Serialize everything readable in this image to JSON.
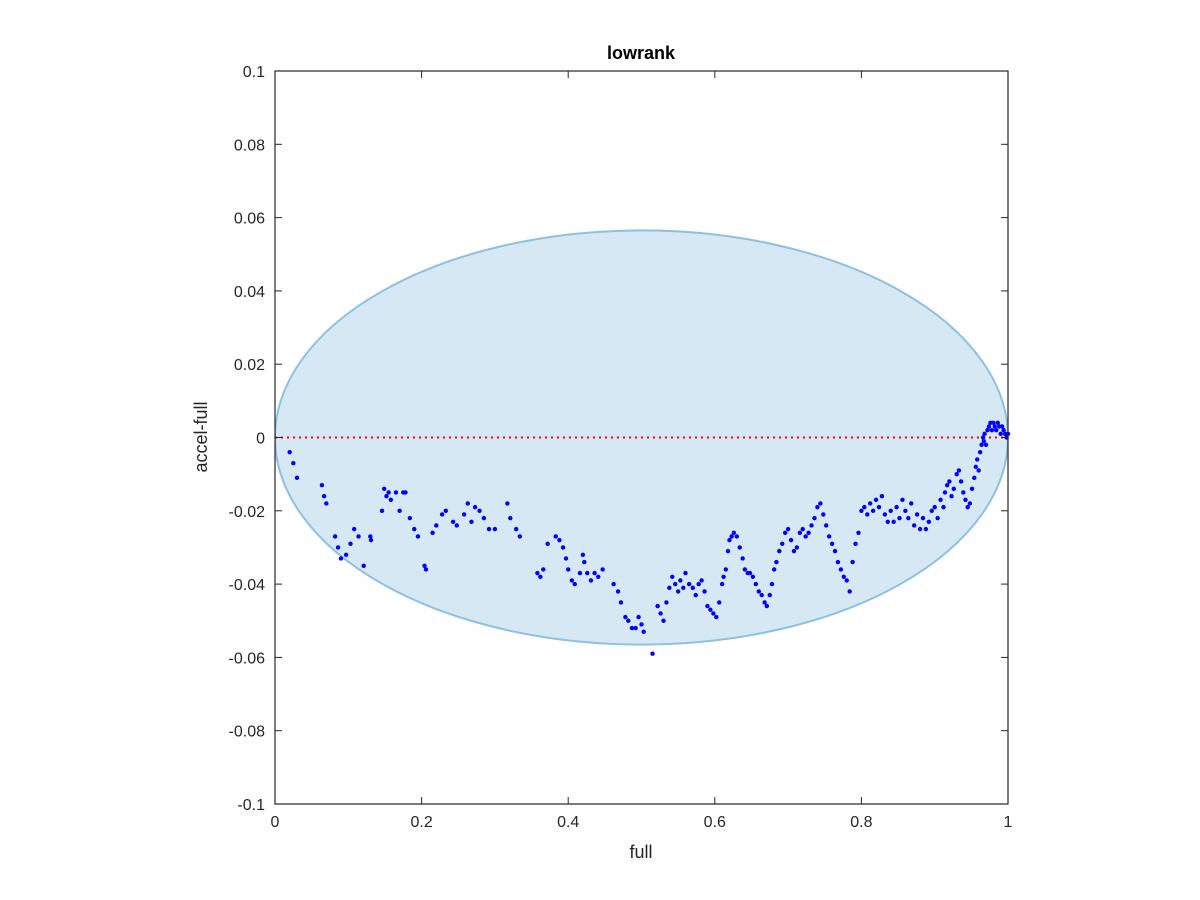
{
  "chart_data": {
    "type": "scatter",
    "title": "lowrank",
    "xlabel": "full",
    "ylabel": "accel-full",
    "xlim": [
      0,
      1
    ],
    "ylim": [
      -0.1,
      0.1
    ],
    "xticks": [
      0,
      0.2,
      0.4,
      0.6,
      0.8,
      1
    ],
    "xtick_labels": [
      "0",
      "0.2",
      "0.4",
      "0.6",
      "0.8",
      "1"
    ],
    "yticks": [
      -0.1,
      -0.08,
      -0.06,
      -0.04,
      -0.02,
      0,
      0.02,
      0.04,
      0.06,
      0.08,
      0.1
    ],
    "ytick_labels": [
      "-0.1",
      "-0.08",
      "-0.06",
      "-0.04",
      "-0.02",
      "0",
      "0.02",
      "0.04",
      "0.06",
      "0.08",
      "0.1"
    ],
    "grid": false,
    "reference_line": {
      "y": 0,
      "style": "dotted",
      "color": "#ff0000"
    },
    "ellipse": {
      "cx": 0.5,
      "cy": 0,
      "rx": 0.5,
      "ry": 0.0565,
      "fill": "#d6e8f4",
      "stroke": "#8ec0df"
    },
    "marker_color": "#0000ff",
    "points": [
      [
        0.02,
        -0.004
      ],
      [
        0.025,
        -0.007
      ],
      [
        0.03,
        -0.011
      ],
      [
        0.064,
        -0.013
      ],
      [
        0.067,
        -0.016
      ],
      [
        0.07,
        -0.018
      ],
      [
        0.082,
        -0.027
      ],
      [
        0.086,
        -0.03
      ],
      [
        0.09,
        -0.033
      ],
      [
        0.097,
        -0.032
      ],
      [
        0.103,
        -0.029
      ],
      [
        0.108,
        -0.025
      ],
      [
        0.114,
        -0.027
      ],
      [
        0.121,
        -0.035
      ],
      [
        0.13,
        -0.027
      ],
      [
        0.131,
        -0.028
      ],
      [
        0.146,
        -0.02
      ],
      [
        0.149,
        -0.014
      ],
      [
        0.152,
        -0.016
      ],
      [
        0.155,
        -0.015
      ],
      [
        0.158,
        -0.017
      ],
      [
        0.165,
        -0.015
      ],
      [
        0.17,
        -0.02
      ],
      [
        0.175,
        -0.015
      ],
      [
        0.178,
        -0.015
      ],
      [
        0.184,
        -0.022
      ],
      [
        0.19,
        -0.025
      ],
      [
        0.195,
        -0.027
      ],
      [
        0.204,
        -0.035
      ],
      [
        0.206,
        -0.036
      ],
      [
        0.215,
        -0.026
      ],
      [
        0.22,
        -0.024
      ],
      [
        0.228,
        -0.021
      ],
      [
        0.233,
        -0.02
      ],
      [
        0.243,
        -0.023
      ],
      [
        0.248,
        -0.024
      ],
      [
        0.258,
        -0.021
      ],
      [
        0.263,
        -0.018
      ],
      [
        0.268,
        -0.023
      ],
      [
        0.273,
        -0.019
      ],
      [
        0.279,
        -0.02
      ],
      [
        0.285,
        -0.022
      ],
      [
        0.292,
        -0.025
      ],
      [
        0.3,
        -0.025
      ],
      [
        0.317,
        -0.018
      ],
      [
        0.321,
        -0.022
      ],
      [
        0.329,
        -0.025
      ],
      [
        0.334,
        -0.027
      ],
      [
        0.358,
        -0.037
      ],
      [
        0.362,
        -0.038
      ],
      [
        0.366,
        -0.036
      ],
      [
        0.372,
        -0.029
      ],
      [
        0.383,
        -0.027
      ],
      [
        0.388,
        -0.028
      ],
      [
        0.393,
        -0.03
      ],
      [
        0.397,
        -0.033
      ],
      [
        0.4,
        -0.036
      ],
      [
        0.405,
        -0.039
      ],
      [
        0.409,
        -0.04
      ],
      [
        0.416,
        -0.037
      ],
      [
        0.42,
        -0.032
      ],
      [
        0.422,
        -0.034
      ],
      [
        0.426,
        -0.037
      ],
      [
        0.431,
        -0.039
      ],
      [
        0.436,
        -0.037
      ],
      [
        0.441,
        -0.038
      ],
      [
        0.447,
        -0.036
      ],
      [
        0.462,
        -0.04
      ],
      [
        0.468,
        -0.042
      ],
      [
        0.472,
        -0.045
      ],
      [
        0.478,
        -0.049
      ],
      [
        0.482,
        -0.05
      ],
      [
        0.487,
        -0.052
      ],
      [
        0.492,
        -0.052
      ],
      [
        0.496,
        -0.049
      ],
      [
        0.5,
        -0.051
      ],
      [
        0.503,
        -0.053
      ],
      [
        0.515,
        -0.059
      ],
      [
        0.522,
        -0.046
      ],
      [
        0.526,
        -0.048
      ],
      [
        0.53,
        -0.05
      ],
      [
        0.534,
        -0.045
      ],
      [
        0.538,
        -0.041
      ],
      [
        0.542,
        -0.038
      ],
      [
        0.546,
        -0.04
      ],
      [
        0.55,
        -0.042
      ],
      [
        0.553,
        -0.039
      ],
      [
        0.557,
        -0.041
      ],
      [
        0.56,
        -0.037
      ],
      [
        0.565,
        -0.04
      ],
      [
        0.57,
        -0.041
      ],
      [
        0.574,
        -0.043
      ],
      [
        0.578,
        -0.04
      ],
      [
        0.582,
        -0.039
      ],
      [
        0.586,
        -0.042
      ],
      [
        0.59,
        -0.046
      ],
      [
        0.594,
        -0.047
      ],
      [
        0.598,
        -0.048
      ],
      [
        0.602,
        -0.049
      ],
      [
        0.606,
        -0.045
      ],
      [
        0.61,
        -0.04
      ],
      [
        0.612,
        -0.038
      ],
      [
        0.615,
        -0.036
      ],
      [
        0.618,
        -0.031
      ],
      [
        0.62,
        -0.028
      ],
      [
        0.623,
        -0.027
      ],
      [
        0.626,
        -0.026
      ],
      [
        0.63,
        -0.027
      ],
      [
        0.634,
        -0.03
      ],
      [
        0.638,
        -0.033
      ],
      [
        0.641,
        -0.036
      ],
      [
        0.645,
        -0.037
      ],
      [
        0.648,
        -0.037
      ],
      [
        0.652,
        -0.038
      ],
      [
        0.656,
        -0.04
      ],
      [
        0.66,
        -0.042
      ],
      [
        0.664,
        -0.043
      ],
      [
        0.668,
        -0.045
      ],
      [
        0.671,
        -0.046
      ],
      [
        0.675,
        -0.043
      ],
      [
        0.678,
        -0.04
      ],
      [
        0.681,
        -0.036
      ],
      [
        0.684,
        -0.034
      ],
      [
        0.688,
        -0.031
      ],
      [
        0.692,
        -0.029
      ],
      [
        0.696,
        -0.026
      ],
      [
        0.7,
        -0.025
      ],
      [
        0.704,
        -0.028
      ],
      [
        0.708,
        -0.031
      ],
      [
        0.712,
        -0.03
      ],
      [
        0.716,
        -0.026
      ],
      [
        0.72,
        -0.025
      ],
      [
        0.724,
        -0.027
      ],
      [
        0.728,
        -0.026
      ],
      [
        0.732,
        -0.024
      ],
      [
        0.736,
        -0.022
      ],
      [
        0.74,
        -0.019
      ],
      [
        0.744,
        -0.018
      ],
      [
        0.748,
        -0.021
      ],
      [
        0.752,
        -0.024
      ],
      [
        0.756,
        -0.027
      ],
      [
        0.76,
        -0.029
      ],
      [
        0.764,
        -0.031
      ],
      [
        0.768,
        -0.034
      ],
      [
        0.772,
        -0.036
      ],
      [
        0.776,
        -0.038
      ],
      [
        0.78,
        -0.039
      ],
      [
        0.784,
        -0.042
      ],
      [
        0.788,
        -0.034
      ],
      [
        0.792,
        -0.029
      ],
      [
        0.796,
        -0.026
      ],
      [
        0.8,
        -0.02
      ],
      [
        0.804,
        -0.019
      ],
      [
        0.808,
        -0.021
      ],
      [
        0.812,
        -0.018
      ],
      [
        0.816,
        -0.02
      ],
      [
        0.82,
        -0.017
      ],
      [
        0.824,
        -0.019
      ],
      [
        0.828,
        -0.016
      ],
      [
        0.832,
        -0.021
      ],
      [
        0.836,
        -0.023
      ],
      [
        0.84,
        -0.02
      ],
      [
        0.844,
        -0.023
      ],
      [
        0.848,
        -0.019
      ],
      [
        0.852,
        -0.022
      ],
      [
        0.856,
        -0.017
      ],
      [
        0.86,
        -0.02
      ],
      [
        0.864,
        -0.022
      ],
      [
        0.868,
        -0.018
      ],
      [
        0.872,
        -0.024
      ],
      [
        0.876,
        -0.021
      ],
      [
        0.88,
        -0.025
      ],
      [
        0.884,
        -0.022
      ],
      [
        0.888,
        -0.025
      ],
      [
        0.892,
        -0.023
      ],
      [
        0.896,
        -0.02
      ],
      [
        0.9,
        -0.019
      ],
      [
        0.904,
        -0.022
      ],
      [
        0.908,
        -0.017
      ],
      [
        0.912,
        -0.019
      ],
      [
        0.914,
        -0.015
      ],
      [
        0.917,
        -0.013
      ],
      [
        0.92,
        -0.012
      ],
      [
        0.923,
        -0.016
      ],
      [
        0.926,
        -0.014
      ],
      [
        0.93,
        -0.01
      ],
      [
        0.933,
        -0.009
      ],
      [
        0.936,
        -0.012
      ],
      [
        0.939,
        -0.015
      ],
      [
        0.942,
        -0.017
      ],
      [
        0.945,
        -0.019
      ],
      [
        0.948,
        -0.018
      ],
      [
        0.951,
        -0.014
      ],
      [
        0.954,
        -0.011
      ],
      [
        0.956,
        -0.008
      ],
      [
        0.958,
        -0.006
      ],
      [
        0.96,
        -0.009
      ],
      [
        0.962,
        -0.004
      ],
      [
        0.964,
        -0.002
      ],
      [
        0.966,
        0.0
      ],
      [
        0.967,
        -0.001
      ],
      [
        0.968,
        0.001
      ],
      [
        0.97,
        -0.002
      ],
      [
        0.972,
        0.002
      ],
      [
        0.974,
        0.003
      ],
      [
        0.976,
        0.004
      ],
      [
        0.978,
        0.002
      ],
      [
        0.98,
        0.004
      ],
      [
        0.982,
        0.003
      ],
      [
        0.984,
        0.002
      ],
      [
        0.986,
        0.004
      ],
      [
        0.988,
        0.003
      ],
      [
        0.99,
        0.001
      ],
      [
        0.992,
        0.003
      ],
      [
        0.994,
        0.002
      ],
      [
        0.996,
        0.001
      ],
      [
        0.998,
        0.0
      ],
      [
        1.0,
        0.001
      ]
    ]
  }
}
